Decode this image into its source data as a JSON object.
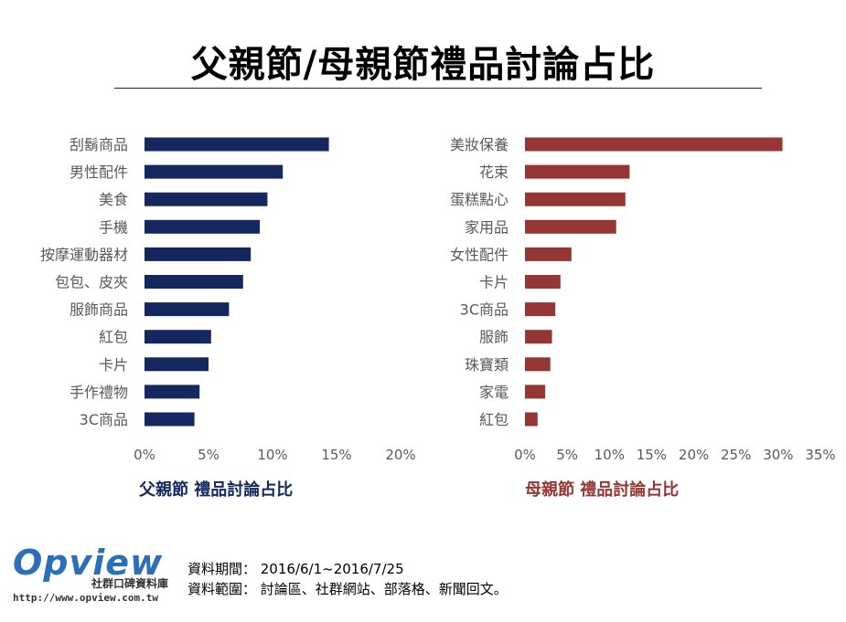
{
  "title": "父親節/母親節禮品討論占比",
  "colors": {
    "left": "#14275e",
    "right": "#943634"
  },
  "chart_data": [
    {
      "type": "bar",
      "orientation": "horizontal",
      "title": "父親節  禮品討論占比",
      "categories": [
        "刮鬍商品",
        "男性配件",
        "美食",
        "手機",
        "按摩運動器材",
        "包包、皮夾",
        "服飾商品",
        "紅包",
        "卡片",
        "手作禮物",
        "3C商品"
      ],
      "values": [
        14.4,
        10.8,
        9.6,
        9.0,
        8.3,
        7.7,
        6.6,
        5.2,
        5.0,
        4.3,
        3.9
      ],
      "xlim": [
        0,
        20
      ],
      "ticks": [
        "0%",
        "5%",
        "10%",
        "15%",
        "20%"
      ],
      "tick_values": [
        0,
        5,
        10,
        15,
        20
      ]
    },
    {
      "type": "bar",
      "orientation": "horizontal",
      "title": "母親節 禮品討論占比",
      "categories": [
        "美妝保養",
        "花束",
        "蛋糕點心",
        "家用品",
        "女性配件",
        "卡片",
        "3C商品",
        "服飾",
        "珠寶類",
        "家電",
        "紅包"
      ],
      "values": [
        30.5,
        12.4,
        11.9,
        10.8,
        5.5,
        4.2,
        3.6,
        3.2,
        3.0,
        2.4,
        1.5
      ],
      "xlim": [
        0,
        35
      ],
      "ticks": [
        "0%",
        "5%",
        "10%",
        "15%",
        "20%",
        "25%",
        "30%",
        "35%"
      ],
      "tick_values": [
        0,
        5,
        10,
        15,
        20,
        25,
        30,
        35
      ]
    }
  ],
  "logo": {
    "word": "Opview",
    "subtitle": "社群口碑資料庫",
    "url": "http://www.opview.com.tw"
  },
  "footnotes": {
    "period": "資料期間： 2016/6/1~2016/7/25",
    "scope": "資料範圍： 討論區、社群網站、部落格、新聞回文。"
  }
}
